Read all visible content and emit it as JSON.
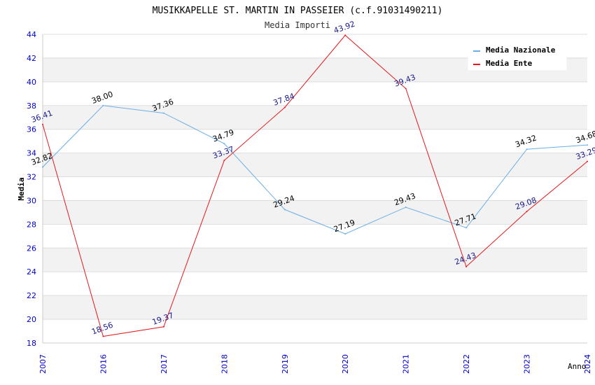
{
  "chart_data": {
    "type": "line",
    "title": "MUSIKKAPELLE ST. MARTIN IN PASSEIER (c.f.91031490211)",
    "subtitle": "Media Importi",
    "xlabel": "Anno",
    "ylabel": "Media",
    "categories": [
      "2007",
      "2016",
      "2017",
      "2018",
      "2019",
      "2020",
      "2021",
      "2022",
      "2023",
      "2024"
    ],
    "ylim": [
      18,
      44
    ],
    "yticks": [
      18,
      20,
      22,
      24,
      26,
      28,
      30,
      32,
      34,
      36,
      38,
      40,
      42,
      44
    ],
    "yticks_labels": [
      "18",
      "20",
      "22",
      "24",
      "26",
      "28",
      "30",
      "32",
      "34",
      "36",
      "38",
      "40",
      "42",
      "44"
    ],
    "grid": true,
    "legend_position": "top-right",
    "series": [
      {
        "name": "Media Nazionale",
        "color": "#6aaee8",
        "label_color": "#000000",
        "values": [
          32.82,
          38.0,
          37.36,
          34.79,
          29.24,
          27.19,
          29.43,
          27.71,
          34.32,
          34.68
        ],
        "labels": [
          "32.82",
          "38.00",
          "37.36",
          "34.79",
          "29.24",
          "27.19",
          "29.43",
          "27.71",
          "34.32",
          "34.68"
        ]
      },
      {
        "name": "Media Ente",
        "color": "#e31a1c",
        "label_color": "#1a1a8c",
        "values": [
          36.41,
          18.56,
          19.37,
          33.37,
          37.84,
          43.92,
          39.43,
          24.43,
          29.08,
          33.29
        ],
        "labels": [
          "36.41",
          "18.56",
          "19.37",
          "33.37",
          "37.84",
          "43.92",
          "39.43",
          "24.43",
          "29.08",
          "33.29"
        ]
      }
    ]
  },
  "colors": {
    "axis_tick_text": "#0000cc",
    "band": "#f2f2f2",
    "gridline": "#dddddd"
  }
}
